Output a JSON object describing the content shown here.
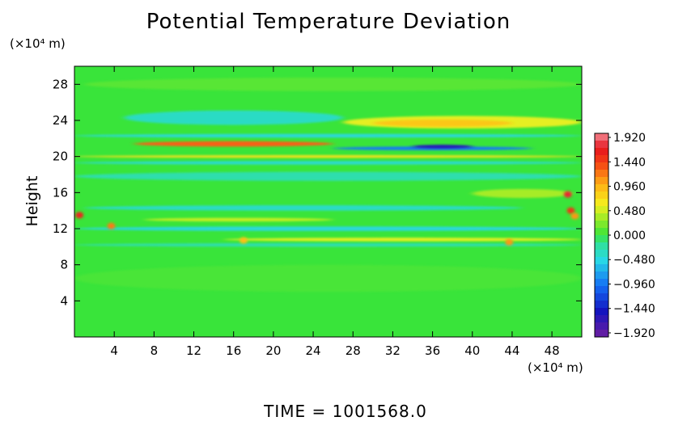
{
  "title": "Potential Temperature Deviation",
  "time_label": "TIME = 1001568.0",
  "colors": {
    "background_field": "#39e43a",
    "frame": "#000000"
  },
  "chart_data": {
    "type": "heatmap",
    "title": "Potential Temperature Deviation",
    "xlabel": "",
    "ylabel": "Height",
    "x_unit": "(×10⁴ m)",
    "y_unit": "(×10⁴ m)",
    "xlim": [
      0,
      51
    ],
    "ylim": [
      0,
      30
    ],
    "x_ticks": [
      "4",
      "8",
      "12",
      "16",
      "20",
      "24",
      "28",
      "32",
      "36",
      "40",
      "44",
      "48"
    ],
    "x_tick_values": [
      4,
      8,
      12,
      16,
      20,
      24,
      28,
      32,
      36,
      40,
      44,
      48
    ],
    "y_ticks": [
      "4",
      "8",
      "12",
      "16",
      "20",
      "24",
      "28"
    ],
    "y_tick_values": [
      4,
      8,
      12,
      16,
      20,
      24,
      28
    ],
    "colorbar": {
      "labels": [
        "1.920",
        "1.440",
        "0.960",
        "0.480",
        "0.000",
        "−0.480",
        "−0.960",
        "−1.440",
        "−1.920"
      ],
      "values": [
        1.92,
        1.44,
        0.96,
        0.48,
        0.0,
        -0.48,
        -0.96,
        -1.44,
        -1.92
      ],
      "vmin": -2.0,
      "vmax": 2.0
    },
    "features": [
      {
        "x": [
          1,
          51
        ],
        "y": 28,
        "value": 0.1,
        "thickness": 1.5
      },
      {
        "x": [
          5,
          27
        ],
        "y": 24.3,
        "value": -0.35,
        "thickness": 1.6
      },
      {
        "x": [
          27,
          51
        ],
        "y": 23.8,
        "value": 0.55,
        "thickness": 1.4
      },
      {
        "x": [
          30,
          44
        ],
        "y": 23.7,
        "value": 0.85,
        "thickness": 0.8
      },
      {
        "x": [
          0,
          51
        ],
        "y": 22.3,
        "value": -0.45,
        "thickness": 0.4
      },
      {
        "x": [
          6,
          26
        ],
        "y": 21.4,
        "value": 1.3,
        "thickness": 0.6
      },
      {
        "x": [
          26,
          46
        ],
        "y": 20.9,
        "value": -0.95,
        "thickness": 0.4
      },
      {
        "x": [
          34,
          40
        ],
        "y": 21.1,
        "value": -1.6,
        "thickness": 0.4
      },
      {
        "x": [
          0,
          51
        ],
        "y": 20.0,
        "value": 0.7,
        "thickness": 0.3
      },
      {
        "x": [
          0,
          51
        ],
        "y": 19.3,
        "value": -0.4,
        "thickness": 0.4
      },
      {
        "x": [
          0,
          51
        ],
        "y": 17.8,
        "value": -0.25,
        "thickness": 1.0
      },
      {
        "x": [
          40,
          50
        ],
        "y": 15.9,
        "value": 0.35,
        "thickness": 1.0
      },
      {
        "x": [
          1,
          45
        ],
        "y": 14.3,
        "value": -0.35,
        "thickness": 0.6
      },
      {
        "x": [
          7,
          26
        ],
        "y": 13.0,
        "value": 0.45,
        "thickness": 0.4
      },
      {
        "x": [
          0,
          51
        ],
        "y": 12.0,
        "value": -0.45,
        "thickness": 0.5
      },
      {
        "x": [
          15,
          51
        ],
        "y": 10.8,
        "value": 0.55,
        "thickness": 0.4
      },
      {
        "x": [
          0,
          51
        ],
        "y": 10.2,
        "value": -0.25,
        "thickness": 0.4
      },
      {
        "x": [
          0,
          51
        ],
        "y": 6.5,
        "value": 0.05,
        "thickness": 3.0
      }
    ],
    "spots": [
      {
        "x": 0.5,
        "y": 13.5,
        "value": 1.6
      },
      {
        "x": 3.7,
        "y": 12.3,
        "value": 1.2
      },
      {
        "x": 49.6,
        "y": 15.8,
        "value": 1.75
      },
      {
        "x": 49.9,
        "y": 14.0,
        "value": 1.5
      },
      {
        "x": 50.3,
        "y": 13.4,
        "value": 1.1
      },
      {
        "x": 43.7,
        "y": 10.5,
        "value": 1.1
      },
      {
        "x": 17.0,
        "y": 10.7,
        "value": 0.9
      }
    ]
  }
}
